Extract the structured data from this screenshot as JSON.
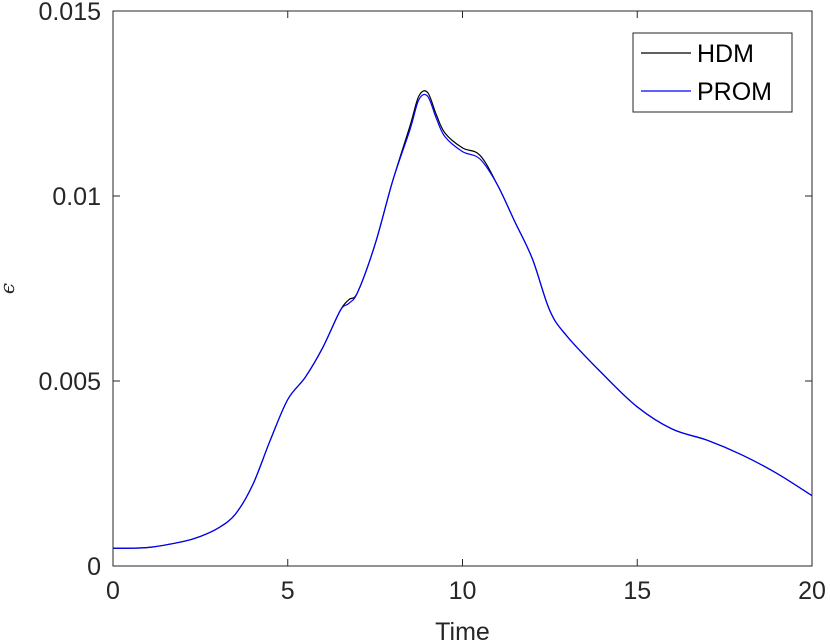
{
  "chart_data": {
    "type": "line",
    "xlabel": "Time",
    "ylabel": "ϵ",
    "xlim": [
      0,
      20
    ],
    "ylim": [
      0,
      0.015
    ],
    "xticks": [
      0,
      5,
      10,
      15,
      20
    ],
    "xtick_labels": [
      "0",
      "5",
      "10",
      "15",
      "20"
    ],
    "yticks": [
      0,
      0.005,
      0.01,
      0.015
    ],
    "ytick_labels": [
      "0",
      "0.005",
      "0.01",
      "0.015"
    ],
    "grid": false,
    "legend_position": "top-right",
    "series": [
      {
        "name": "HDM",
        "color": "#000000",
        "x": [
          0,
          1,
          2,
          2.5,
          3,
          3.5,
          4,
          4.5,
          5,
          5.5,
          6,
          6.5,
          6.75,
          7,
          7.5,
          8,
          8.5,
          8.75,
          9,
          9.25,
          9.5,
          10,
          10.5,
          11,
          11.5,
          12,
          12.5,
          13,
          14,
          15,
          16,
          17,
          18,
          19,
          20
        ],
        "y": [
          0.00048,
          0.0005,
          0.00066,
          0.0008,
          0.00102,
          0.0014,
          0.0022,
          0.0034,
          0.0045,
          0.0051,
          0.0059,
          0.0069,
          0.0072,
          0.0074,
          0.0087,
          0.0104,
          0.0119,
          0.0127,
          0.0128,
          0.0122,
          0.0117,
          0.0113,
          0.0111,
          0.0103,
          0.0093,
          0.0083,
          0.0069,
          0.0062,
          0.0052,
          0.0043,
          0.0037,
          0.0034,
          0.003,
          0.0025,
          0.0019
        ]
      },
      {
        "name": "PROM",
        "color": "#0000ff",
        "x": [
          0,
          1,
          2,
          2.5,
          3,
          3.5,
          4,
          4.5,
          5,
          5.5,
          6,
          6.5,
          6.75,
          7,
          7.5,
          8,
          8.5,
          8.75,
          9,
          9.25,
          9.5,
          10,
          10.5,
          11,
          11.5,
          12,
          12.5,
          13,
          14,
          15,
          16,
          17,
          18,
          19,
          20
        ],
        "y": [
          0.00048,
          0.0005,
          0.00066,
          0.0008,
          0.00102,
          0.0014,
          0.0022,
          0.0034,
          0.0045,
          0.0051,
          0.0059,
          0.0069,
          0.0071,
          0.0074,
          0.0087,
          0.0104,
          0.0118,
          0.0126,
          0.0127,
          0.0121,
          0.0116,
          0.0112,
          0.011,
          0.0103,
          0.0093,
          0.0083,
          0.0069,
          0.0062,
          0.0052,
          0.0043,
          0.0037,
          0.0034,
          0.003,
          0.0025,
          0.0019
        ]
      }
    ]
  }
}
